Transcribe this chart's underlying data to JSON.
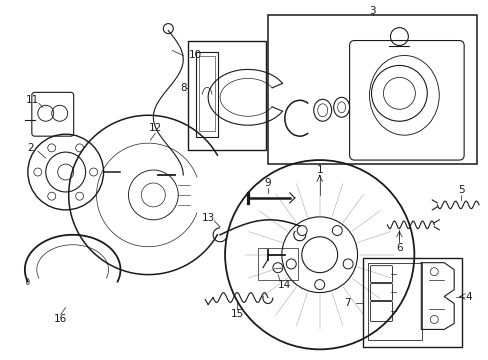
{
  "background_color": "#ffffff",
  "line_color": "#1a1a1a",
  "fontsize": 7.5,
  "lw": 0.8,
  "fig_w": 4.89,
  "fig_h": 3.6,
  "dpi": 100
}
